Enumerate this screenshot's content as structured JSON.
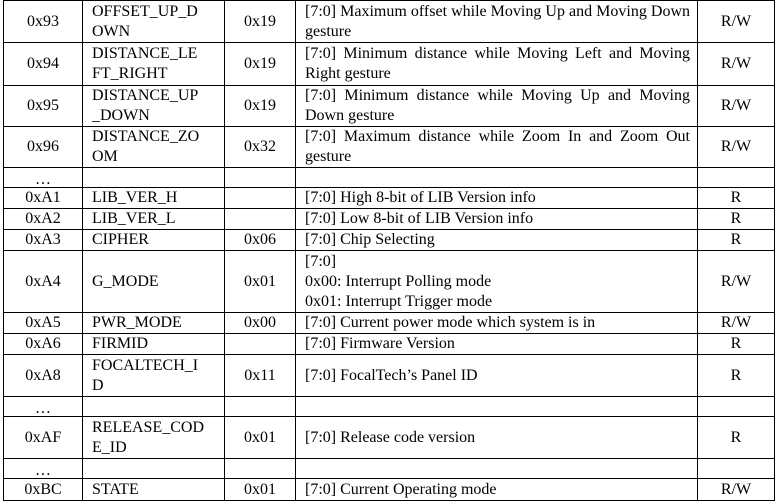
{
  "rows": [
    {
      "addr": "0x93",
      "name": "OFFSET_UP_D\nOWN",
      "default": "0x19",
      "desc": "[7:0] Maximum offset while Moving Up and Moving Down gesture",
      "rw": "R/W",
      "h": 42
    },
    {
      "addr": "0x94",
      "name": "DISTANCE_LE\nFT_RIGHT",
      "default": "0x19",
      "desc": "[7:0] Minimum distance while Moving Left and Moving Right gesture",
      "rw": "R/W",
      "h": 43
    },
    {
      "addr": "0x95",
      "name": "DISTANCE_UP\n_DOWN",
      "default": "0x19",
      "desc": "[7:0] Minimum distance while Moving Up and Moving Down gesture",
      "rw": "R/W",
      "h": 41
    },
    {
      "addr": "0x96",
      "name": "DISTANCE_ZO\nOM",
      "default": "0x32",
      "desc": "[7:0] Maximum distance while Zoom In and Zoom Out gesture",
      "rw": "R/W",
      "h": 41
    },
    {
      "addr": "…",
      "name": "",
      "default": "",
      "desc": "",
      "rw": "",
      "h": 20,
      "ellipsis": true
    },
    {
      "addr": "0xA1",
      "name": "LIB_VER_H",
      "default": "",
      "desc": "[7:0] High 8-bit of LIB Version info",
      "rw": "R",
      "h": 21
    },
    {
      "addr": "0xA2",
      "name": "LIB_VER_L",
      "default": "",
      "desc": "[7:0] Low 8-bit of LIB Version info",
      "rw": "R",
      "h": 21
    },
    {
      "addr": "0xA3",
      "name": "CIPHER",
      "default": "0x06",
      "desc": "[7:0] Chip Selecting",
      "rw": "R",
      "h": 21
    },
    {
      "addr": "0xA4",
      "name": "G_MODE",
      "default": "0x01",
      "desc": "[7:0]\n0x00: Interrupt Polling mode\n0x01: Interrupt Trigger mode",
      "rw": "R/W",
      "h": 62
    },
    {
      "addr": "0xA5",
      "name": "PWR_MODE",
      "default": "0x00",
      "desc": "[7:0] Current power mode which system is in",
      "rw": "R/W",
      "h": 21
    },
    {
      "addr": "0xA6",
      "name": "FIRMID",
      "default": "",
      "desc": "[7:0] Firmware Version",
      "rw": "R",
      "h": 20
    },
    {
      "addr": "0xA8",
      "name": "FOCALTECH_I\nD",
      "default": "0x11",
      "desc": "[7:0] FocalTech’s Panel ID",
      "rw": "R",
      "h": 42
    },
    {
      "addr": "…",
      "name": "",
      "default": "",
      "desc": "",
      "rw": "",
      "h": 20,
      "ellipsis": true
    },
    {
      "addr": "0xAF",
      "name": "RELEASE_COD\nE_ID",
      "default": "0x01",
      "desc": "[7:0] Release code version",
      "rw": "R",
      "h": 42
    },
    {
      "addr": "…",
      "name": "",
      "default": "",
      "desc": "",
      "rw": "",
      "h": 20,
      "ellipsis": true
    },
    {
      "addr": "0xBC",
      "name": "STATE",
      "default": "0x01",
      "desc": "[7:0] Current Operating mode",
      "rw": "R/W",
      "h": 22
    }
  ]
}
